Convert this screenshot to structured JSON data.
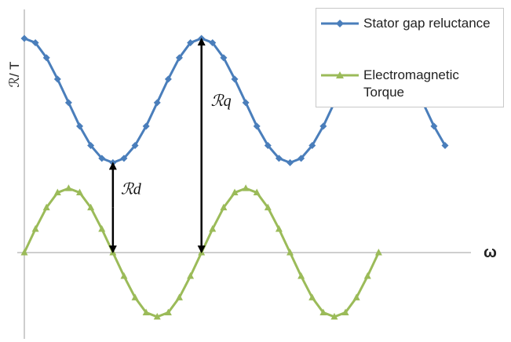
{
  "chart_data": {
    "type": "line",
    "xlabel": "ω",
    "ylabel": "ℛ/ T",
    "series": [
      {
        "name": "Stator gap reluctance",
        "color": "#4a7ebb",
        "marker": "diamond",
        "x": [
          0,
          1,
          2,
          3,
          4,
          5,
          6,
          7,
          8,
          9,
          10,
          11,
          12,
          13,
          14,
          15,
          16,
          17,
          18,
          19,
          20,
          21,
          22,
          23,
          24,
          25,
          26,
          27,
          28,
          29,
          30,
          31,
          32,
          33,
          34,
          35,
          36,
          37,
          38
        ],
        "values": [
          1.0,
          0.98,
          0.91,
          0.81,
          0.7,
          0.59,
          0.5,
          0.44,
          0.42,
          0.44,
          0.5,
          0.59,
          0.7,
          0.81,
          0.91,
          0.98,
          1.0,
          0.98,
          0.91,
          0.81,
          0.7,
          0.59,
          0.5,
          0.44,
          0.42,
          0.44,
          0.5,
          0.59,
          0.7,
          0.81,
          0.91,
          0.98,
          1.0,
          0.98,
          0.91,
          0.81,
          0.7,
          0.59,
          0.5
        ]
      },
      {
        "name": "Electromagnetic Torque",
        "color": "#9bbb59",
        "marker": "triangle",
        "x": [
          0,
          1,
          2,
          3,
          4,
          5,
          6,
          7,
          8,
          9,
          10,
          11,
          12,
          13,
          14,
          15,
          16,
          17,
          18,
          19,
          20,
          21,
          22,
          23,
          24,
          25,
          26,
          27,
          28,
          29,
          30,
          31,
          32
        ],
        "values": [
          0,
          0.11,
          0.21,
          0.28,
          0.3,
          0.28,
          0.21,
          0.11,
          0,
          -0.11,
          -0.21,
          -0.28,
          -0.3,
          -0.28,
          -0.21,
          -0.11,
          0,
          0.11,
          0.21,
          0.28,
          0.3,
          0.28,
          0.21,
          0.11,
          0,
          -0.11,
          -0.21,
          -0.28,
          -0.3,
          -0.28,
          -0.21,
          -0.11,
          0
        ]
      }
    ],
    "annotations": [
      {
        "label": "ℛd",
        "x": 8,
        "from": 0,
        "to": 0.42
      },
      {
        "label": "ℛq",
        "x": 16,
        "from": 0,
        "to": 1.0
      }
    ],
    "xlim": [
      0,
      38
    ],
    "ylim": [
      -0.4,
      1.06
    ],
    "grid": false,
    "legend": "top-right"
  }
}
